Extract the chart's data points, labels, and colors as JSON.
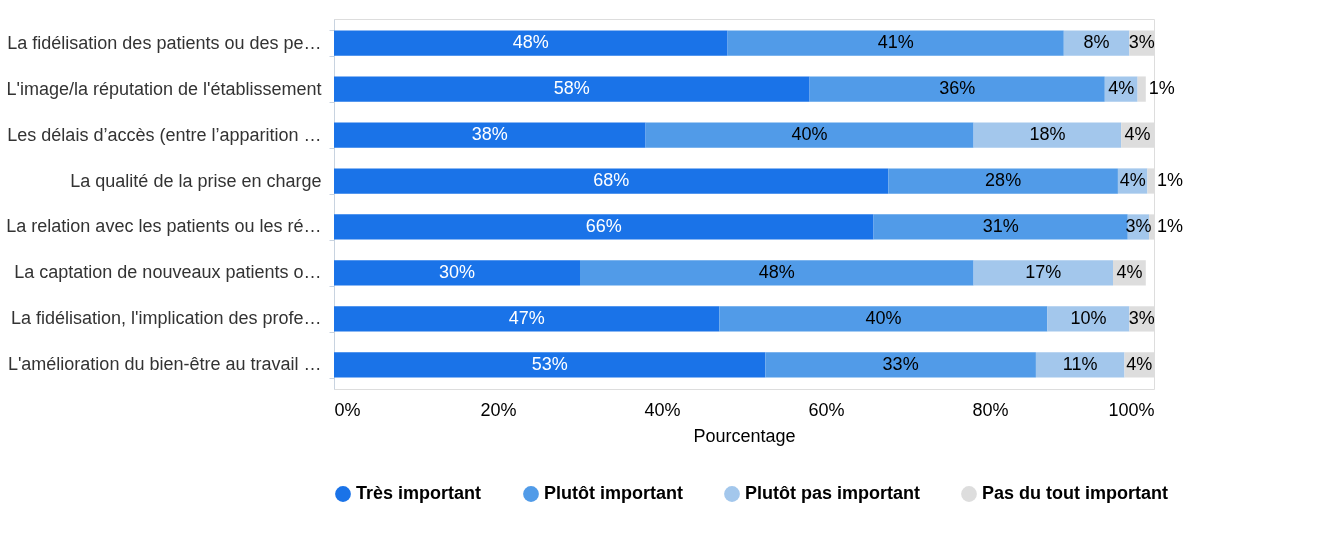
{
  "chart_data": {
    "type": "bar",
    "orientation": "horizontal",
    "stacked": true,
    "xlabel": "Pourcentage",
    "categories": [
      "La fidélisation des patients ou des pe…",
      "L'image/la réputation de l'établissement",
      "Les délais d’accès (entre l’apparition …",
      "La qualité de la prise en charge",
      "La relation avec les patients ou les ré…",
      "La captation de nouveaux patients o…",
      "La fidélisation, l'implication des profe…",
      "L'amélioration du bien-être au travail …"
    ],
    "series": [
      {
        "name": "Très important",
        "color": "#1a73e8",
        "values": [
          48,
          58,
          38,
          67.6,
          65.8,
          30,
          47,
          52.6
        ],
        "value_labels": [
          "48%",
          "58%",
          "38%",
          "68%",
          "66%",
          "30%",
          "47%",
          "53%"
        ]
      },
      {
        "name": "Plutôt important",
        "color": "#519be8",
        "values": [
          41,
          36,
          40,
          28,
          31,
          48,
          40,
          33
        ],
        "value_labels": [
          "41%",
          "36%",
          "40%",
          "28%",
          "31%",
          "48%",
          "40%",
          "33%"
        ]
      },
      {
        "name": "Plutôt pas important",
        "color": "#a3c7ec",
        "values": [
          8,
          4,
          18,
          3.6,
          2.6,
          17,
          10,
          10.8
        ],
        "value_labels": [
          "8%",
          "4%",
          "18%",
          "4%",
          "3%",
          "17%",
          "10%",
          "11%"
        ]
      },
      {
        "name": "Pas du tout important",
        "color": "#dddddd",
        "values": [
          3,
          1,
          4,
          0.8,
          0.6,
          4,
          3,
          3.6
        ],
        "value_labels": [
          "3%",
          "1%",
          "4%",
          "1%",
          "1%",
          "4%",
          "3%",
          "4%"
        ]
      }
    ],
    "xlim": [
      0,
      100
    ],
    "xticks": [
      {
        "value": 0,
        "label": "0%"
      },
      {
        "value": 20,
        "label": "20%"
      },
      {
        "value": 40,
        "label": "40%"
      },
      {
        "value": 60,
        "label": "60%"
      },
      {
        "value": 80,
        "label": "80%"
      },
      {
        "value": 100,
        "label": "100%"
      }
    ],
    "legend": "bottom",
    "grid": false
  }
}
